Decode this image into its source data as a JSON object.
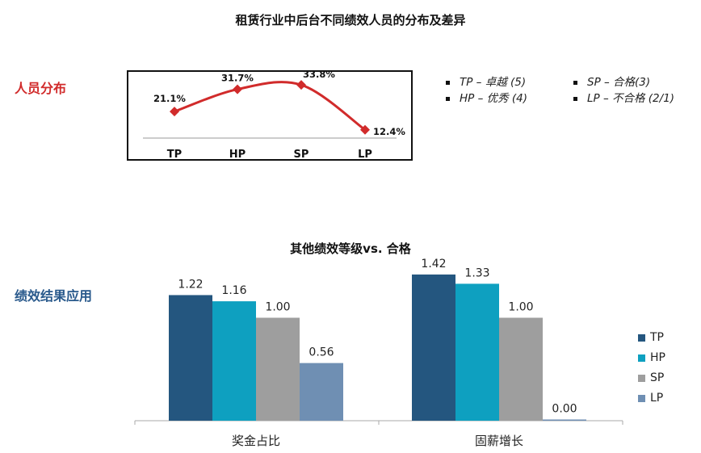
{
  "title": "租赁行业中后台不同绩效人员的分布及差异",
  "section_labels": {
    "distribution": "人员分布",
    "application": "绩效结果应用"
  },
  "grade_legend": [
    {
      "text": "TP – 卓越 (5)"
    },
    {
      "text": "SP – 合格(3)"
    },
    {
      "text": "HP – 优秀 (4)"
    },
    {
      "text": "LP – 不合格 (2/1)"
    }
  ],
  "colors": {
    "line": "#d12b2b",
    "TP": "#24567f",
    "HP": "#0ea0c0",
    "SP": "#9e9e9e",
    "LP": "#6f8fb3"
  },
  "chart_data": [
    {
      "type": "line",
      "categories": [
        "TP",
        "HP",
        "SP",
        "LP"
      ],
      "values": [
        21.1,
        31.7,
        33.8,
        12.4
      ],
      "data_labels": [
        "21.1%",
        "31.7%",
        "33.8%",
        "12.4%"
      ],
      "title": "",
      "xlabel": "",
      "ylabel": "",
      "grid": false
    },
    {
      "type": "bar",
      "title": "其他绩效等级vs. 合格",
      "categories": [
        "奖金占比",
        "固薪增长"
      ],
      "series": [
        {
          "name": "TP",
          "values": [
            1.22,
            1.42
          ],
          "labels": [
            "1.22",
            "1.42"
          ]
        },
        {
          "name": "HP",
          "values": [
            1.16,
            1.33
          ],
          "labels": [
            "1.16",
            "1.33"
          ]
        },
        {
          "name": "SP",
          "values": [
            1.0,
            1.0
          ],
          "labels": [
            "1.00",
            "1.00"
          ]
        },
        {
          "name": "LP",
          "values": [
            0.56,
            0.0
          ],
          "labels": [
            "0.56",
            "0.00"
          ]
        }
      ],
      "xlabel": "",
      "ylabel": "",
      "ylim": [
        0,
        1.6
      ],
      "grid": false,
      "legend": "right"
    }
  ]
}
